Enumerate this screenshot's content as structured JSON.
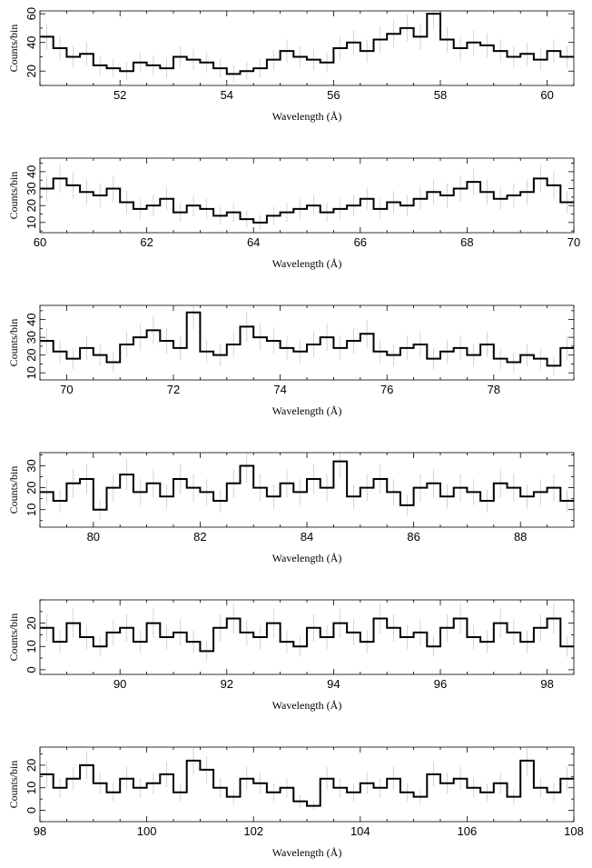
{
  "chart_data": [
    {
      "type": "line",
      "xlabel": "Wavelength (Å)",
      "ylabel": "Counts/bin",
      "xlim": [
        50.5,
        60.5
      ],
      "ylim": [
        10,
        62
      ],
      "xticks": [
        52,
        54,
        56,
        58,
        60
      ],
      "yticks": [
        20,
        40,
        60
      ],
      "series": [
        {
          "x": [
            50.5,
            50.75,
            51.0,
            51.25,
            51.5,
            51.75,
            52.0,
            52.25,
            52.5,
            52.75,
            53.0,
            53.25,
            53.5,
            53.75,
            54.0,
            54.25,
            54.5,
            54.75,
            55.0,
            55.25,
            55.5,
            55.75,
            56.0,
            56.25,
            56.5,
            56.75,
            57.0,
            57.25,
            57.5,
            57.75,
            58.0,
            58.25,
            58.5,
            58.75,
            59.0,
            59.25,
            59.5,
            59.75,
            60.0,
            60.25
          ],
          "values": [
            44,
            36,
            30,
            32,
            24,
            22,
            20,
            26,
            24,
            22,
            30,
            28,
            26,
            22,
            18,
            20,
            22,
            28,
            34,
            30,
            28,
            26,
            36,
            40,
            34,
            42,
            46,
            50,
            44,
            60,
            42,
            36,
            40,
            38,
            34,
            30,
            32,
            28,
            34,
            30
          ]
        }
      ]
    },
    {
      "type": "line",
      "xlabel": "Wavelength (Å)",
      "ylabel": "Counts/bin",
      "xlim": [
        60,
        70
      ],
      "ylim": [
        4,
        48
      ],
      "xticks": [
        60,
        62,
        64,
        66,
        68,
        70
      ],
      "yticks": [
        10,
        20,
        30,
        40
      ],
      "series": [
        {
          "x": [
            60.0,
            60.25,
            60.5,
            60.75,
            61.0,
            61.25,
            61.5,
            61.75,
            62.0,
            62.25,
            62.5,
            62.75,
            63.0,
            63.25,
            63.5,
            63.75,
            64.0,
            64.25,
            64.5,
            64.75,
            65.0,
            65.25,
            65.5,
            65.75,
            66.0,
            66.25,
            66.5,
            66.75,
            67.0,
            67.25,
            67.5,
            67.75,
            68.0,
            68.25,
            68.5,
            68.75,
            69.0,
            69.25,
            69.5,
            69.75
          ],
          "values": [
            30,
            36,
            32,
            28,
            26,
            30,
            22,
            18,
            20,
            24,
            16,
            20,
            18,
            14,
            16,
            12,
            10,
            14,
            16,
            18,
            20,
            16,
            18,
            20,
            24,
            18,
            22,
            20,
            24,
            28,
            26,
            30,
            34,
            28,
            24,
            26,
            28,
            36,
            32,
            22
          ]
        }
      ]
    },
    {
      "type": "line",
      "xlabel": "Wavelength (Å)",
      "ylabel": "Counts/bin",
      "xlim": [
        69.5,
        79.5
      ],
      "ylim": [
        6,
        48
      ],
      "xticks": [
        70,
        72,
        74,
        76,
        78
      ],
      "yticks": [
        10,
        20,
        30,
        40
      ],
      "series": [
        {
          "x": [
            69.5,
            69.75,
            70.0,
            70.25,
            70.5,
            70.75,
            71.0,
            71.25,
            71.5,
            71.75,
            72.0,
            72.25,
            72.5,
            72.75,
            73.0,
            73.25,
            73.5,
            73.75,
            74.0,
            74.25,
            74.5,
            74.75,
            75.0,
            75.25,
            75.5,
            75.75,
            76.0,
            76.25,
            76.5,
            76.75,
            77.0,
            77.25,
            77.5,
            77.75,
            78.0,
            78.25,
            78.5,
            78.75,
            79.0,
            79.25
          ],
          "values": [
            28,
            22,
            18,
            24,
            20,
            16,
            26,
            30,
            34,
            28,
            24,
            44,
            22,
            20,
            26,
            36,
            30,
            28,
            24,
            22,
            26,
            30,
            24,
            28,
            32,
            22,
            20,
            24,
            26,
            18,
            22,
            24,
            20,
            26,
            18,
            16,
            20,
            18,
            14,
            24
          ]
        }
      ]
    },
    {
      "type": "line",
      "xlabel": "Wavelength (Å)",
      "ylabel": "Counts/bin",
      "xlim": [
        79,
        89
      ],
      "ylim": [
        2,
        36
      ],
      "xticks": [
        80,
        82,
        84,
        86,
        88
      ],
      "yticks": [
        10,
        20,
        30
      ],
      "series": [
        {
          "x": [
            79.0,
            79.25,
            79.5,
            79.75,
            80.0,
            80.25,
            80.5,
            80.75,
            81.0,
            81.25,
            81.5,
            81.75,
            82.0,
            82.25,
            82.5,
            82.75,
            83.0,
            83.25,
            83.5,
            83.75,
            84.0,
            84.25,
            84.5,
            84.75,
            85.0,
            85.25,
            85.5,
            85.75,
            86.0,
            86.25,
            86.5,
            86.75,
            87.0,
            87.25,
            87.5,
            87.75,
            88.0,
            88.25,
            88.5,
            88.75
          ],
          "values": [
            18,
            14,
            22,
            24,
            10,
            20,
            26,
            18,
            22,
            16,
            24,
            20,
            18,
            14,
            22,
            30,
            20,
            16,
            22,
            18,
            24,
            20,
            32,
            16,
            20,
            24,
            18,
            12,
            20,
            22,
            16,
            20,
            18,
            14,
            22,
            20,
            16,
            18,
            20,
            14
          ]
        }
      ]
    },
    {
      "type": "line",
      "xlabel": "Wavelength (Å)",
      "ylabel": "Counts/bin",
      "xlim": [
        88.5,
        98.5
      ],
      "ylim": [
        -2,
        30
      ],
      "xticks": [
        90,
        92,
        94,
        96,
        98
      ],
      "yticks": [
        0,
        10,
        20
      ],
      "series": [
        {
          "x": [
            88.5,
            88.75,
            89.0,
            89.25,
            89.5,
            89.75,
            90.0,
            90.25,
            90.5,
            90.75,
            91.0,
            91.25,
            91.5,
            91.75,
            92.0,
            92.25,
            92.5,
            92.75,
            93.0,
            93.25,
            93.5,
            93.75,
            94.0,
            94.25,
            94.5,
            94.75,
            95.0,
            95.25,
            95.5,
            95.75,
            96.0,
            96.25,
            96.5,
            96.75,
            97.0,
            97.25,
            97.5,
            97.75,
            98.0,
            98.25
          ],
          "values": [
            18,
            12,
            20,
            14,
            10,
            16,
            18,
            12,
            20,
            14,
            16,
            12,
            8,
            18,
            22,
            16,
            14,
            20,
            12,
            10,
            18,
            14,
            20,
            16,
            12,
            22,
            18,
            14,
            16,
            10,
            18,
            22,
            14,
            12,
            20,
            16,
            12,
            18,
            22,
            10
          ]
        }
      ]
    },
    {
      "type": "line",
      "xlabel": "Wavelength (Å)",
      "ylabel": "Counts/bin",
      "xlim": [
        98,
        108
      ],
      "ylim": [
        -5,
        28
      ],
      "xticks": [
        98,
        100,
        102,
        104,
        106,
        108
      ],
      "yticks": [
        0,
        10,
        20
      ],
      "series": [
        {
          "x": [
            98.0,
            98.25,
            98.5,
            98.75,
            99.0,
            99.25,
            99.5,
            99.75,
            100.0,
            100.25,
            100.5,
            100.75,
            101.0,
            101.25,
            101.5,
            101.75,
            102.0,
            102.25,
            102.5,
            102.75,
            103.0,
            103.25,
            103.5,
            103.75,
            104.0,
            104.25,
            104.5,
            104.75,
            105.0,
            105.25,
            105.5,
            105.75,
            106.0,
            106.25,
            106.5,
            106.75,
            107.0,
            107.25,
            107.5,
            107.75
          ],
          "values": [
            16,
            10,
            14,
            20,
            12,
            8,
            14,
            10,
            12,
            16,
            8,
            22,
            18,
            10,
            6,
            14,
            12,
            8,
            10,
            4,
            2,
            14,
            10,
            8,
            12,
            10,
            14,
            8,
            6,
            16,
            12,
            14,
            10,
            8,
            12,
            6,
            22,
            10,
            8,
            14
          ]
        }
      ]
    }
  ]
}
